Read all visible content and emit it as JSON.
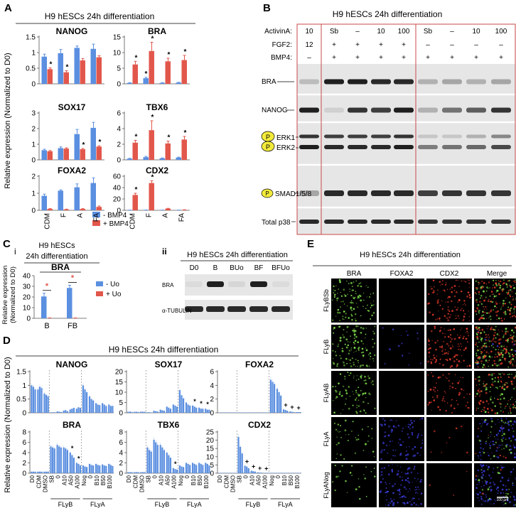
{
  "panel_letters": [
    "A",
    "B",
    "C",
    "D",
    "E"
  ],
  "colors": {
    "blue": "#5b8fe0",
    "red": "#e2574c",
    "blot_bg": "#e6e6e6",
    "band": "#141414",
    "frame": "#c84848"
  },
  "panel_a": {
    "title": "H9 hESCs 24h differentiation",
    "ylabel": "Relative expression (Normalized to D0)",
    "categories": [
      "CDM",
      "F",
      "A",
      "FA"
    ],
    "legend": [
      "- BMP4",
      "+ BMP4"
    ],
    "marker": "*"
  },
  "panel_b": {
    "title": "H9 hESCs 24h differentiation",
    "row_labels": [
      "ActivinA:",
      "FGF2:",
      "BMP4:"
    ],
    "rows": [
      [
        "10",
        "Sb",
        "–",
        "10",
        "100",
        "Sb",
        "–",
        "10",
        "100"
      ],
      [
        "12",
        "+",
        "+",
        "+",
        "+",
        "–",
        "–",
        "–",
        "–"
      ],
      [
        "–",
        "+",
        "+",
        "+",
        "+",
        "+",
        "+",
        "+",
        "+"
      ]
    ],
    "blots": [
      "BRA",
      "NANOG",
      "ERK1",
      "ERK2",
      "SMAD1/5/8",
      "Total p38"
    ],
    "phospho": "P"
  },
  "panel_c": {
    "sub_i": "i",
    "sub_ii": "ii",
    "i_title_1": "H9 hESCs",
    "i_title_2": "24h differentiation",
    "i_gene": "BRA",
    "i_ylabel_1": "Relative expression",
    "i_ylabel_2": "(Normalized to D0)",
    "i_legend": [
      "- Uo",
      "+ Uo"
    ],
    "ii_title": "H9 hESCs 24h differentiation",
    "ii_lanes": [
      "D0",
      "B",
      "BUo",
      "BF",
      "BFUo"
    ],
    "ii_blots": [
      "BRA",
      "α-TUBULIN"
    ]
  },
  "panel_d": {
    "title": "H9 hESCs 24h differentiation",
    "ylabel": "Relative expression (Normalized to D0)",
    "ticks": [
      "D0",
      "CDM",
      "DMSO",
      "SB",
      "0",
      "A10",
      "A50",
      "A100",
      "Nog",
      "0",
      "B10",
      "B50",
      "B100"
    ],
    "groups": [
      "FLyB",
      "FLyA"
    ],
    "marker_star": "*",
    "marker_plus": "+"
  },
  "panel_e": {
    "title": "H9 hESCs 24h differentiation",
    "columns": [
      "BRA",
      "FOXA2",
      "CDX2",
      "Merge"
    ],
    "rows": [
      "FLyBSb",
      "FLyB",
      "FLyAB",
      "FLyA",
      "FLyANog"
    ],
    "scale": "100 µm"
  },
  "chart_data": [
    {
      "type": "bar",
      "panel": "A",
      "title": "NANOG",
      "categories": [
        "CDM",
        "F",
        "A",
        "FA"
      ],
      "ylim": [
        0,
        1.5
      ],
      "yticks": [
        0,
        0.5,
        1,
        1.5
      ],
      "series": [
        {
          "name": "- BMP4",
          "values": [
            0.87,
            0.98,
            1.15,
            1.12
          ],
          "errors": [
            0.08,
            0.12,
            0.06,
            0.15
          ]
        },
        {
          "name": "+ BMP4",
          "values": [
            0.47,
            0.37,
            0.75,
            0.85
          ],
          "errors": [
            0.04,
            0.05,
            0.06,
            0.05
          ]
        }
      ],
      "markers": [
        "*",
        "*",
        "",
        ""
      ]
    },
    {
      "type": "bar",
      "panel": "A",
      "title": "BRA",
      "categories": [
        "CDM",
        "F",
        "A",
        "FA"
      ],
      "ylim": [
        0,
        15
      ],
      "yticks": [
        0,
        5,
        10,
        15
      ],
      "series": [
        {
          "name": "- BMP4",
          "values": [
            0.3,
            1.8,
            0.3,
            0.4
          ],
          "errors": [
            0.1,
            0.3,
            0.1,
            0.1
          ]
        },
        {
          "name": "+ BMP4",
          "values": [
            6.2,
            10.5,
            7.2,
            7.6
          ],
          "errors": [
            1.0,
            2.8,
            1.0,
            1.5
          ]
        }
      ],
      "markers": [
        "*",
        "*",
        "*",
        "*"
      ],
      "markers_extra": [
        "",
        "*",
        "",
        ""
      ]
    },
    {
      "type": "bar",
      "panel": "A",
      "title": "SOX17",
      "categories": [
        "CDM",
        "F",
        "A",
        "FA"
      ],
      "ylim": [
        0,
        3
      ],
      "yticks": [
        0,
        1,
        2,
        3
      ],
      "series": [
        {
          "name": "- BMP4",
          "values": [
            0.62,
            0.75,
            1.65,
            2.05
          ],
          "errors": [
            0.06,
            0.08,
            0.3,
            0.35
          ]
        },
        {
          "name": "+ BMP4",
          "values": [
            0.55,
            0.72,
            0.68,
            0.85
          ],
          "errors": [
            0.05,
            0.05,
            0.05,
            0.05
          ]
        }
      ],
      "markers": [
        "",
        "",
        "*",
        "*"
      ]
    },
    {
      "type": "bar",
      "panel": "A",
      "title": "TBX6",
      "categories": [
        "CDM",
        "F",
        "A",
        "FA"
      ],
      "ylim": [
        0,
        6
      ],
      "yticks": [
        0,
        2,
        4,
        6
      ],
      "series": [
        {
          "name": "- BMP4",
          "values": [
            0.15,
            0.35,
            0.2,
            0.3
          ],
          "errors": [
            0.05,
            0.1,
            0.05,
            0.05
          ]
        },
        {
          "name": "+ BMP4",
          "values": [
            2.2,
            3.8,
            2.1,
            2.6
          ],
          "errors": [
            0.3,
            1.2,
            0.3,
            0.4
          ]
        }
      ],
      "markers": [
        "*",
        "*",
        "*",
        "*"
      ]
    },
    {
      "type": "bar",
      "panel": "A",
      "title": "FOXA2",
      "categories": [
        "CDM",
        "F",
        "A",
        "FA"
      ],
      "ylim": [
        0,
        2
      ],
      "yticks": [
        0,
        1,
        2
      ],
      "series": [
        {
          "name": "- BMP4",
          "values": [
            0.85,
            1.15,
            1.35,
            1.6
          ],
          "errors": [
            0.1,
            0.05,
            0.2,
            0.3
          ]
        },
        {
          "name": "+ BMP4",
          "values": [
            0.08,
            0.05,
            0.08,
            0.2
          ],
          "errors": [
            0.02,
            0.02,
            0.02,
            0.05
          ]
        }
      ],
      "markers": [
        "",
        "",
        "",
        ""
      ]
    },
    {
      "type": "bar",
      "panel": "A",
      "title": "CDX2",
      "categories": [
        "CDM",
        "F",
        "A",
        "FA"
      ],
      "ylim": [
        0,
        60
      ],
      "yticks": [
        0,
        20,
        40,
        60
      ],
      "series": [
        {
          "name": "- BMP4",
          "values": [
            0.3,
            0.5,
            0.3,
            0.3
          ],
          "errors": [
            0.1,
            0.1,
            0.1,
            0.1
          ]
        },
        {
          "name": "+ BMP4",
          "values": [
            27,
            48,
            3,
            0.8
          ],
          "errors": [
            3,
            4,
            0.5,
            0.2
          ]
        }
      ],
      "markers": [
        "*",
        "*",
        "",
        ""
      ]
    },
    {
      "type": "bar",
      "panel": "C-i",
      "title": "BRA",
      "categories": [
        "B",
        "FB"
      ],
      "ylim": [
        0,
        40
      ],
      "yticks": [
        0,
        10,
        20,
        30,
        40
      ],
      "series": [
        {
          "name": "- Uo",
          "values": [
            20.5,
            28.5
          ],
          "errors": [
            3,
            2.5
          ]
        },
        {
          "name": "+ Uo",
          "values": [
            0.3,
            0.3
          ],
          "errors": [
            0.1,
            0.1
          ]
        }
      ],
      "markers": [
        "*",
        "*"
      ]
    },
    {
      "type": "bar",
      "panel": "D",
      "title": "NANOG",
      "categories": [
        "D0",
        "CDM",
        "DMSO",
        "SB",
        "0",
        "A10",
        "A50",
        "A100",
        "Nog",
        "0",
        "B10",
        "B50",
        "B100"
      ],
      "ylim": [
        0,
        1.5
      ],
      "yticks": [
        0,
        0.5,
        1,
        1.5
      ],
      "replicates": [
        [
          1.0,
          0.95,
          0.85
        ],
        [
          0.85,
          0.95,
          0.9
        ],
        [
          0.7,
          0.65,
          0.6
        ],
        [
          0.02,
          0.02,
          0.02
        ],
        [
          0.05,
          0.04,
          0.03
        ],
        [
          0.08,
          0.1,
          0.06
        ],
        [
          0.12,
          0.15,
          0.18
        ],
        [
          0.15,
          0.2,
          0.18
        ],
        [
          1.0,
          0.85,
          0.75
        ],
        [
          0.6,
          0.5,
          0.45
        ],
        [
          0.35,
          0.3,
          0.28
        ],
        [
          0.35,
          0.3,
          0.25
        ],
        [
          0.3,
          0.25,
          0.25
        ]
      ],
      "markers": [
        "",
        "",
        "",
        "",
        "",
        "",
        "",
        "",
        "",
        "",
        "",
        "",
        ""
      ]
    },
    {
      "type": "bar",
      "panel": "D",
      "title": "SOX17",
      "categories": [
        "D0",
        "CDM",
        "DMSO",
        "SB",
        "0",
        "A10",
        "A50",
        "A100",
        "Nog",
        "0",
        "B10",
        "B50",
        "B100"
      ],
      "ylim": [
        0,
        20
      ],
      "yticks": [
        0,
        5,
        10,
        15,
        20
      ],
      "replicates": [
        [
          0.5,
          0.6,
          0.4
        ],
        [
          0.5,
          0.5,
          0.4
        ],
        [
          0.6,
          0.5,
          0.5
        ],
        [
          0.3,
          0.3,
          0.2
        ],
        [
          1.0,
          0.8,
          0.6
        ],
        [
          1.5,
          1.2,
          1.0
        ],
        [
          3.0,
          2.5,
          2.0
        ],
        [
          4.0,
          3.5,
          3.0
        ],
        [
          11.0,
          8.5,
          7.0
        ],
        [
          5.0,
          4.0,
          3.5
        ],
        [
          3.5,
          3.0,
          2.5
        ],
        [
          2.5,
          2.0,
          2.0
        ],
        [
          2.0,
          1.5,
          1.5
        ]
      ],
      "markers": [
        "",
        "",
        "",
        "",
        "",
        "",
        "",
        "",
        "",
        "",
        "*",
        "*",
        "*"
      ]
    },
    {
      "type": "bar",
      "panel": "D",
      "title": "FOXA2",
      "categories": [
        "D0",
        "CDM",
        "DMSO",
        "SB",
        "0",
        "A10",
        "A50",
        "A100",
        "Nog",
        "0",
        "B10",
        "B50",
        "B100"
      ],
      "ylim": [
        0,
        6
      ],
      "yticks": [
        0,
        2,
        4,
        6
      ],
      "replicates": [
        [
          0.05,
          0.05,
          0.05
        ],
        [
          0.05,
          0.05,
          0.05
        ],
        [
          0.05,
          0.05,
          0.05
        ],
        [
          0.05,
          0.05,
          0.05
        ],
        [
          0.05,
          0.05,
          0.05
        ],
        [
          0.05,
          0.05,
          0.05
        ],
        [
          0.05,
          0.05,
          0.05
        ],
        [
          0.05,
          0.05,
          0.05
        ],
        [
          4.8,
          4.5,
          4.2
        ],
        [
          3.5,
          3.0,
          2.5
        ],
        [
          0.5,
          0.4,
          0.3
        ],
        [
          0.2,
          0.15,
          0.1
        ],
        [
          0.1,
          0.1,
          0.1
        ]
      ],
      "markers": [
        "",
        "",
        "",
        "",
        "",
        "",
        "",
        "",
        "",
        "",
        "+",
        "+",
        "+"
      ]
    },
    {
      "type": "bar",
      "panel": "D",
      "title": "BRA",
      "categories": [
        "D0",
        "CDM",
        "DMSO",
        "SB",
        "0",
        "A10",
        "A50",
        "A100",
        "Nog",
        "0",
        "B10",
        "B50",
        "B100"
      ],
      "ylim": [
        0,
        8
      ],
      "yticks": [
        0,
        2,
        4,
        6,
        8
      ],
      "replicates": [
        [
          0.3,
          0.3,
          0.3
        ],
        [
          0.3,
          0.3,
          0.3
        ],
        [
          0.3,
          0.3,
          0.3
        ],
        [
          5.2,
          5.0,
          4.8
        ],
        [
          5.5,
          5.2,
          5.0
        ],
        [
          5.0,
          4.8,
          4.5
        ],
        [
          4.0,
          3.5,
          3.0
        ],
        [
          2.0,
          1.8,
          1.5
        ],
        [
          1.5,
          1.3,
          1.2
        ],
        [
          1.8,
          1.6,
          1.5
        ],
        [
          1.8,
          1.6,
          1.5
        ],
        [
          1.7,
          1.5,
          1.4
        ],
        [
          1.8,
          1.6,
          1.4
        ]
      ],
      "markers": [
        "",
        "",
        "",
        "",
        "",
        "",
        "*",
        "*",
        "",
        "",
        "",
        "",
        ""
      ]
    },
    {
      "type": "bar",
      "panel": "D",
      "title": "TBX6",
      "categories": [
        "D0",
        "CDM",
        "DMSO",
        "SB",
        "0",
        "A10",
        "A50",
        "A100",
        "Nog",
        "0",
        "B10",
        "B50",
        "B100"
      ],
      "ylim": [
        0,
        8
      ],
      "yticks": [
        0,
        2,
        4,
        6,
        8
      ],
      "replicates": [
        [
          0.2,
          0.2,
          0.2
        ],
        [
          0.2,
          0.2,
          0.2
        ],
        [
          0.2,
          0.2,
          0.2
        ],
        [
          5.0,
          4.5,
          4.2
        ],
        [
          6.5,
          6.0,
          5.5
        ],
        [
          5.5,
          5.0,
          4.5
        ],
        [
          4.0,
          3.5,
          3.0
        ],
        [
          1.0,
          0.8,
          0.7
        ],
        [
          1.5,
          1.3,
          1.2
        ],
        [
          2.0,
          1.8,
          1.6
        ],
        [
          2.0,
          1.8,
          1.6
        ],
        [
          2.0,
          1.8,
          1.6
        ],
        [
          2.0,
          1.8,
          1.5
        ]
      ],
      "markers": [
        "",
        "",
        "",
        "",
        "",
        "",
        "",
        "*",
        "",
        "",
        "",
        "",
        ""
      ]
    },
    {
      "type": "bar",
      "panel": "D",
      "title": "CDX2",
      "categories": [
        "D0",
        "CDM",
        "DMSO",
        "SB",
        "0",
        "A10",
        "A50",
        "A100",
        "Nog",
        "0",
        "B10",
        "B50",
        "B100"
      ],
      "ylim": [
        0,
        25
      ],
      "yticks": [
        0,
        5,
        10,
        15,
        20,
        25
      ],
      "replicates": [
        [
          0.2,
          0.2,
          0.2
        ],
        [
          0.2,
          0.2,
          0.2
        ],
        [
          0.2,
          0.2,
          0.2
        ],
        [
          22,
          16,
          12
        ],
        [
          4.5,
          4.0,
          3.0
        ],
        [
          1.5,
          1.2,
          1.0
        ],
        [
          0.5,
          0.4,
          0.3
        ],
        [
          0.2,
          0.2,
          0.2
        ],
        [
          0.2,
          0.2,
          0.2
        ],
        [
          0.2,
          0.2,
          0.2
        ],
        [
          0.2,
          0.2,
          0.2
        ],
        [
          0.2,
          0.2,
          0.2
        ],
        [
          0.2,
          0.2,
          0.2
        ]
      ],
      "markers": [
        "",
        "",
        "",
        "",
        "+",
        "+",
        "+",
        "+",
        "",
        "",
        "",
        "",
        ""
      ]
    }
  ]
}
